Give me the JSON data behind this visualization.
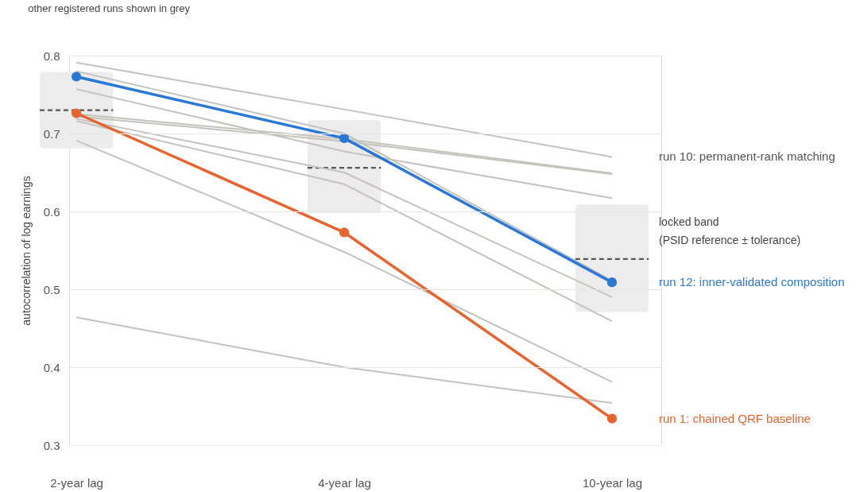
{
  "chart_data": {
    "type": "line",
    "subtitle": "other registered runs shown in grey",
    "ylabel": "autocorrelation of log earnings",
    "categories": [
      "2-year lag",
      "4-year lag",
      "10-year lag"
    ],
    "ylim": [
      0.3,
      0.8
    ],
    "yticks": [
      0.3,
      0.4,
      0.5,
      0.6,
      0.7,
      0.8
    ],
    "grid": "y",
    "legend": false,
    "annotations": [
      "locked band\n(PSID reference ± tolerance)"
    ],
    "series": [
      {
        "type": "box",
        "color": "#ececec",
        "boxes": [
          {
            "low": 0.681,
            "q1": 0.681,
            "median": 0.73,
            "q3": 0.779,
            "high": 0.779
          },
          {
            "low": 0.598,
            "q1": 0.598,
            "median": 0.656,
            "q3": 0.717,
            "high": 0.717
          },
          {
            "low": 0.471,
            "q1": 0.471,
            "median": 0.539,
            "q3": 0.609,
            "high": 0.609
          }
        ]
      },
      {
        "color": "#c4c2bd",
        "marker": "none",
        "values": [
          0.78,
          0.7,
          0.511
        ]
      },
      {
        "color": "#c4c2bd",
        "marker": "none",
        "values": [
          0.757,
          0.677,
          0.617
        ]
      },
      {
        "color": "#c4c2bd",
        "marker": "none",
        "values": [
          0.725,
          0.693,
          0.649
        ]
      },
      {
        "color": "#c4c2bd",
        "marker": "none",
        "values": [
          0.722,
          0.69,
          0.648
        ]
      },
      {
        "color": "#c4c2bd",
        "marker": "none",
        "values": [
          0.719,
          0.65,
          0.49
        ]
      },
      {
        "color": "#c4c2bd",
        "marker": "none",
        "values": [
          0.716,
          0.635,
          0.459
        ]
      },
      {
        "color": "#c4c2bd",
        "marker": "none",
        "values": [
          0.691,
          0.548,
          0.381
        ]
      },
      {
        "color": "#c4c2bd",
        "marker": "none",
        "values": [
          0.464,
          0.4,
          0.354
        ]
      },
      {
        "name": "run 10: permanent-rank matching",
        "color": "#c4c2bd",
        "marker": "none",
        "values": [
          0.791,
          0.731,
          0.67
        ]
      },
      {
        "name": "run 1: chained QRF baseline",
        "color": "#e8642f",
        "marker": "circle",
        "values": [
          0.726,
          0.573,
          0.334
        ]
      },
      {
        "name": "run 12: inner-validated composition",
        "color": "#2a78d6",
        "marker": "circle",
        "values": [
          0.773,
          0.694,
          0.509
        ]
      }
    ]
  }
}
